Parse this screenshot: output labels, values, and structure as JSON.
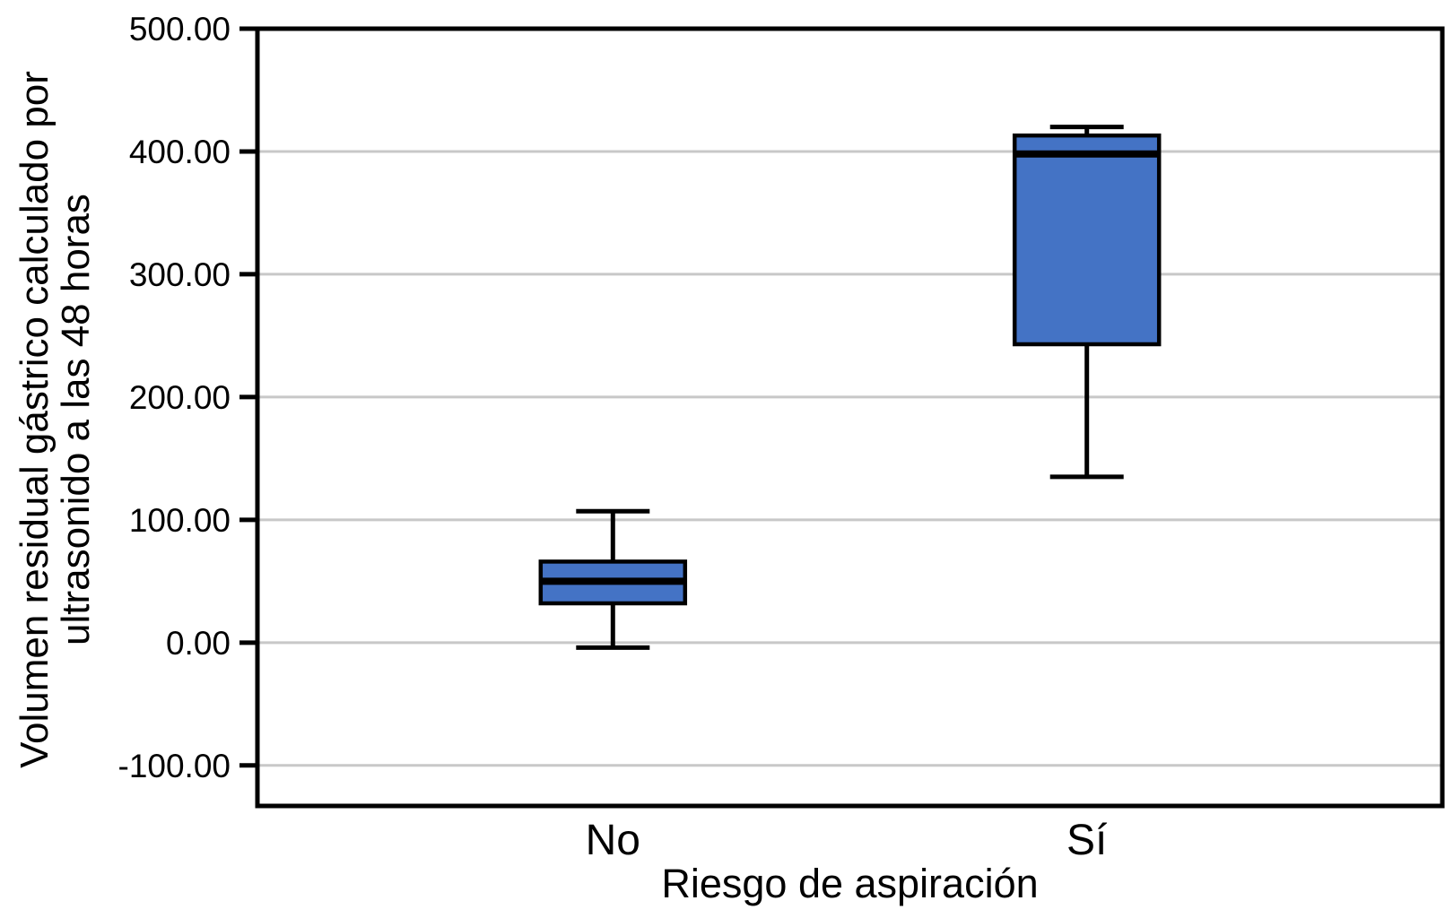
{
  "chart_data": {
    "type": "boxplot",
    "xlabel": "Riesgo de aspiración",
    "ylabel": "Volumen residual gástrico calculado por ultrasonido a las 48 horas",
    "ylabel_lines": {
      "0": "Volumen residual gástrico calculado por",
      "1": "ultrasonido a las 48 horas"
    },
    "categories": [
      "No",
      "Sí"
    ],
    "series": [
      {
        "category": "No",
        "min": -4,
        "q1": 32,
        "median": 50,
        "q3": 66,
        "max": 107
      },
      {
        "category": "Sí",
        "min": 135,
        "q1": 243,
        "median": 398,
        "q3": 413,
        "max": 420
      }
    ],
    "ylim": [
      -133,
      500
    ],
    "yticks": [
      500,
      400,
      300,
      200,
      100,
      0,
      -100
    ],
    "ytick_labels": [
      "500.00",
      "400.00",
      "300.00",
      "200.00",
      "100.00",
      "0.00",
      "-100.00"
    ],
    "grid": true,
    "legend": false,
    "colors": {
      "box_fill": "#4473C5",
      "box_border": "#000000",
      "median": "#000000",
      "whisker": "#000000",
      "grid": "#C8C8C8",
      "axis": "#000000",
      "background": "#FFFFFF",
      "text": "#000000"
    }
  }
}
